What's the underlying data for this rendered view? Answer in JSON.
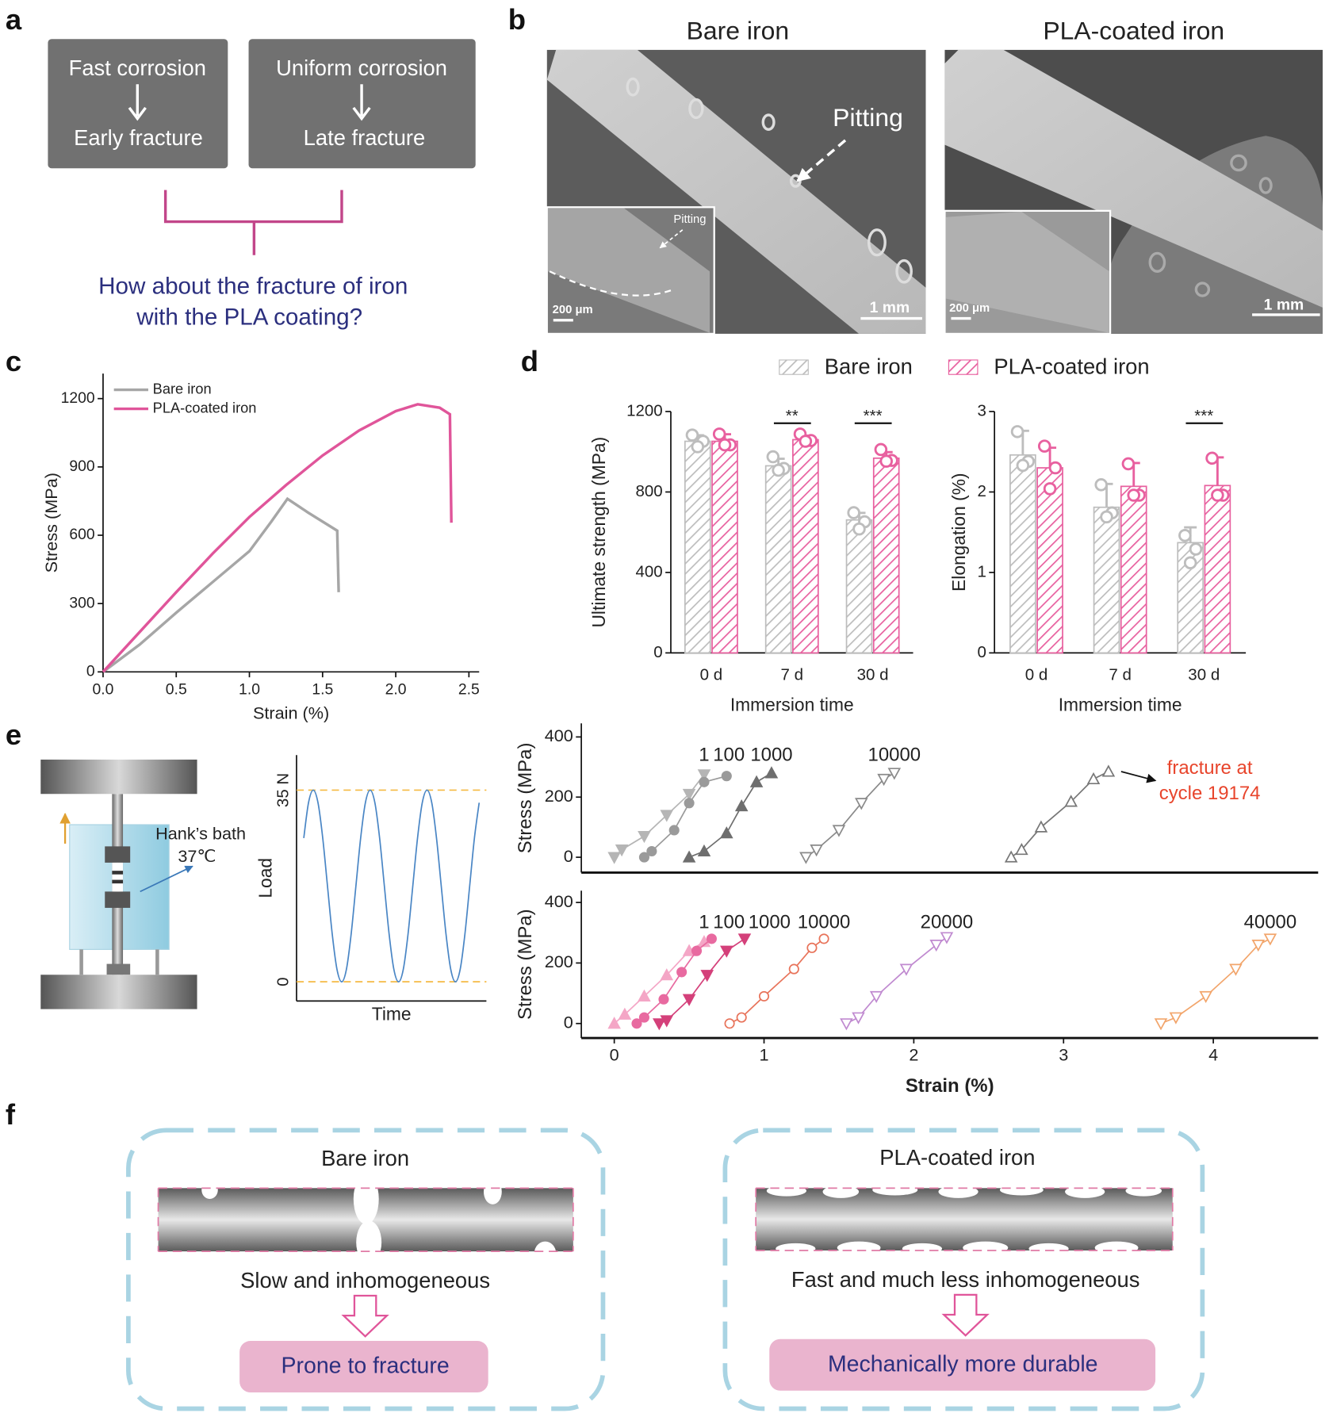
{
  "panel_labels": [
    "a",
    "b",
    "c",
    "d",
    "e",
    "f"
  ],
  "panel_a": {
    "boxes": [
      {
        "top": "Fast corrosion",
        "bottom": "Early fracture"
      },
      {
        "top": "Uniform corrosion",
        "bottom": "Late fracture"
      }
    ],
    "question": [
      "How about the fracture of iron",
      "with the PLA coating?"
    ]
  },
  "panel_b": {
    "images": [
      {
        "title": "Bare iron",
        "annotation": "Pitting",
        "inset_annotation": "Pitting",
        "inset_scale": "200 μm",
        "scale": "1 mm"
      },
      {
        "title": "PLA-coated iron",
        "inset_scale": "200 μm",
        "scale": "1 mm"
      }
    ]
  },
  "panel_e": {
    "bath_label": "Hank’s bath",
    "temperature": "37℃"
  },
  "panel_f": {
    "panels": [
      {
        "title": "Bare iron",
        "process": "Slow and inhomogeneous",
        "outcome": "Prone to fracture"
      },
      {
        "title": "PLA-coated iron",
        "process": "Fast and much less inhomogeneous",
        "outcome": "Mechanically more durable"
      }
    ]
  },
  "chart_data": [
    {
      "type": "line",
      "ylabel": "Stress (MPa)",
      "xlabel": "Strain (%)",
      "xlim": [
        0,
        2.57
      ],
      "ylim": [
        0,
        1310
      ],
      "xticks": [
        {
          "value": 0,
          "label": "0.0"
        },
        0.5,
        {
          "value": 1,
          "label": "1.0"
        },
        1.5,
        {
          "value": 2,
          "label": "2.0"
        },
        2.5
      ],
      "yticks": [
        0,
        300,
        600,
        900,
        1200
      ],
      "legend": "upper left",
      "series": [
        {
          "name": "Bare iron",
          "color": "#a6a6a6",
          "x": [
            0,
            0.25,
            0.5,
            0.75,
            1.0,
            1.15,
            1.26,
            1.4,
            1.6,
            1.61
          ],
          "values": [
            0,
            120,
            260,
            395,
            530,
            660,
            760,
            700,
            620,
            350
          ]
        },
        {
          "name": "PLA-coated iron",
          "color": "#e0559a",
          "x": [
            0,
            0.25,
            0.5,
            0.75,
            1.0,
            1.25,
            1.5,
            1.75,
            2.0,
            2.15,
            2.3,
            2.37,
            2.38
          ],
          "values": [
            0,
            175,
            350,
            520,
            680,
            820,
            950,
            1060,
            1145,
            1175,
            1160,
            1131,
            655
          ]
        }
      ]
    },
    {
      "type": "bar",
      "ylabel": "Ultimate strength (MPa)",
      "xlabel": "Immersion time",
      "categories": [
        "0 d",
        "7 d",
        "30 d"
      ],
      "ylim": [
        0,
        1200
      ],
      "yticks": [
        0,
        400,
        800,
        1200
      ],
      "legend": "top",
      "significance": [
        null,
        "**",
        "***"
      ],
      "series": [
        {
          "name": "Bare iron",
          "color": "#bdbdbd",
          "values": [
            1052,
            930,
            661
          ],
          "errors": [
            30,
            35,
            35
          ],
          "points": [
            [
              1083,
              1052,
              1025
            ],
            [
              975,
              917,
              908
            ],
            [
              697,
              652,
              616
            ]
          ]
        },
        {
          "name": "PLA-coated iron",
          "color": "#e8609f",
          "values": [
            1052,
            1060,
            968
          ],
          "errors": [
            35,
            20,
            30
          ],
          "points": [
            [
              1088,
              1034,
              1034
            ],
            [
              1088,
              1056,
              1052
            ],
            [
              1011,
              957,
              953
            ]
          ]
        }
      ]
    },
    {
      "type": "bar",
      "ylabel": "Elongation (%)",
      "xlabel": "Immersion time",
      "categories": [
        "0 d",
        "7 d",
        "30 d"
      ],
      "ylim": [
        0,
        3
      ],
      "yticks": [
        0,
        1,
        2,
        3
      ],
      "significance": [
        null,
        null,
        "***"
      ],
      "series": [
        {
          "color": "#bdbdbd",
          "values": [
            2.46,
            1.81,
            1.37
          ],
          "errors": [
            0.3,
            0.29,
            0.19
          ],
          "points": [
            [
              2.75,
              2.38,
              2.33
            ],
            [
              2.09,
              1.74,
              1.69
            ],
            [
              1.46,
              1.29,
              1.12
            ]
          ]
        },
        {
          "color": "#e8609f",
          "values": [
            2.3,
            2.07,
            2.08
          ],
          "errors": [
            0.25,
            0.29,
            0.35
          ],
          "points": [
            [
              2.57,
              2.3,
              2.04
            ],
            [
              2.35,
              1.96,
              1.96
            ],
            [
              2.42,
              1.96,
              1.96
            ]
          ]
        }
      ]
    },
    {
      "type": "line",
      "ylabel": "Load",
      "xlabel": "Time",
      "ylim": [
        -3.5,
        41.4
      ],
      "yticks": [
        0,
        {
          "value": 35,
          "label": "35 N"
        }
      ],
      "grid": true,
      "grid_color": "#f5b942",
      "series": [
        {
          "color": "#4a86c5",
          "values": [
            26.25,
            32.7,
            35,
            32.7,
            26.25,
            17.5,
            8.75,
            2.3,
            0,
            2.3,
            8.75,
            17.5,
            26.25,
            32.7,
            35,
            32.7,
            26.25,
            17.5,
            8.75,
            2.3,
            0,
            2.3,
            8.75,
            17.5,
            26.25,
            32.7,
            35,
            32.7,
            26.25,
            17.5,
            8.75,
            2.3,
            0,
            2.3,
            8.75,
            17.5,
            26.25,
            32.7
          ]
        }
      ]
    },
    {
      "type": "scatter",
      "ylabel": "Stress (MPa)",
      "xlim": [
        -0.22,
        4.7
      ],
      "ylim": [
        -51,
        445
      ],
      "yticks": [
        0,
        200,
        400
      ],
      "series": [
        {
          "name": "1",
          "color": "#b5b5b5",
          "marker": "triangle-down",
          "filled": true,
          "x": [
            0,
            0.05,
            0.2,
            0.35,
            0.5,
            0.6
          ],
          "values": [
            0,
            25,
            70,
            140,
            210,
            275
          ]
        },
        {
          "name": "100",
          "color": "#9a9a9a",
          "marker": "circle",
          "filled": true,
          "x": [
            0.2,
            0.25,
            0.4,
            0.5,
            0.6,
            0.75
          ],
          "values": [
            0,
            20,
            90,
            180,
            250,
            270
          ]
        },
        {
          "name": "1000",
          "color": "#6e6e6e",
          "marker": "triangle-up",
          "filled": true,
          "x": [
            0.5,
            0.6,
            0.75,
            0.85,
            0.95,
            1.05
          ],
          "values": [
            0,
            20,
            80,
            170,
            250,
            280
          ]
        },
        {
          "name": "10000",
          "color": "#8a8a8a",
          "marker": "triangle-down",
          "filled": false,
          "x": [
            1.28,
            1.35,
            1.5,
            1.65,
            1.8,
            1.87
          ],
          "values": [
            0,
            25,
            90,
            180,
            260,
            280
          ]
        },
        {
          "color": "#777777",
          "marker": "triangle-up",
          "filled": false,
          "x": [
            2.65,
            2.72,
            2.85,
            3.05,
            3.2,
            3.3
          ],
          "values": [
            0,
            25,
            100,
            185,
            260,
            285
          ],
          "annotation": {
            "text": [
              "fracture at",
              "cycle 19174"
            ],
            "color": "#e8452c"
          }
        }
      ]
    },
    {
      "type": "scatter",
      "ylabel": "Stress (MPa)",
      "xlabel": "Strain (%)",
      "xlim": [
        -0.22,
        4.7
      ],
      "ylim": [
        -48,
        439
      ],
      "xticks": [
        0,
        1,
        2,
        3,
        4
      ],
      "yticks": [
        0,
        200,
        400
      ],
      "series": [
        {
          "name": "1",
          "color": "#f4a6c6",
          "marker": "triangle-up",
          "filled": true,
          "x": [
            0,
            0.07,
            0.2,
            0.35,
            0.5,
            0.6
          ],
          "values": [
            0,
            30,
            90,
            160,
            240,
            270
          ]
        },
        {
          "name": "100",
          "color": "#e86aa0",
          "marker": "circle",
          "filled": true,
          "x": [
            0.15,
            0.2,
            0.33,
            0.45,
            0.55,
            0.65
          ],
          "values": [
            0,
            20,
            80,
            170,
            240,
            280
          ]
        },
        {
          "name": "1000",
          "color": "#d4407a",
          "marker": "triangle-down",
          "filled": true,
          "x": [
            0.3,
            0.35,
            0.5,
            0.62,
            0.75,
            0.87
          ],
          "values": [
            0,
            10,
            80,
            160,
            240,
            280
          ]
        },
        {
          "name": "10000",
          "color": "#e8735a",
          "marker": "circle",
          "filled": false,
          "x": [
            0.77,
            0.85,
            1.0,
            1.2,
            1.32,
            1.4
          ],
          "values": [
            0,
            20,
            90,
            180,
            250,
            280
          ]
        },
        {
          "name": "20000",
          "color": "#c08ad0",
          "marker": "triangle-down",
          "filled": false,
          "x": [
            1.55,
            1.63,
            1.75,
            1.95,
            2.15,
            2.22
          ],
          "values": [
            0,
            20,
            90,
            180,
            260,
            285
          ]
        },
        {
          "name": "40000",
          "color": "#f2a56b",
          "marker": "triangle-down",
          "filled": false,
          "x": [
            3.65,
            3.75,
            3.95,
            4.15,
            4.3,
            4.38
          ],
          "values": [
            0,
            20,
            90,
            180,
            260,
            280
          ]
        }
      ]
    }
  ]
}
